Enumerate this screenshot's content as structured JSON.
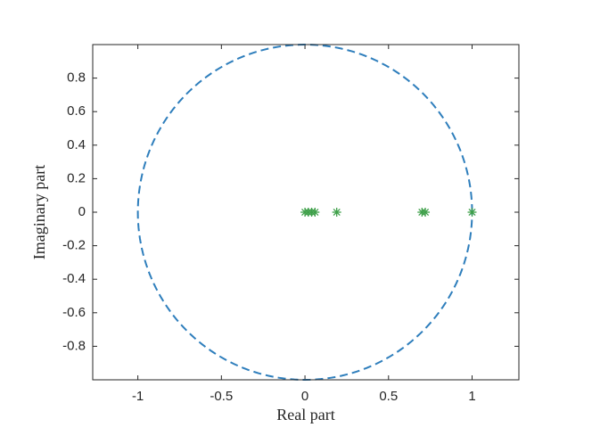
{
  "chart_data": {
    "type": "scatter",
    "x_label": "Real part",
    "y_label": "Imaginary part",
    "xlim": [
      -1.27,
      1.28
    ],
    "ylim": [
      -1,
      1
    ],
    "xticks": [
      -1,
      -0.5,
      0,
      0.5,
      1
    ],
    "yticks": [
      -0.8,
      -0.6,
      -0.4,
      -0.2,
      0,
      0.2,
      0.4,
      0.6,
      0.8
    ],
    "circle": {
      "radius": 1,
      "color": "#2e7ebc",
      "dashed": true
    },
    "series": [
      {
        "color": "#3fa04a",
        "marker": "*",
        "x": [
          0,
          0.02,
          0.04,
          0.06,
          0.19,
          0.7,
          0.72,
          1.0
        ],
        "values": [
          0,
          0,
          0,
          0,
          0,
          0,
          0,
          0
        ]
      }
    ]
  }
}
